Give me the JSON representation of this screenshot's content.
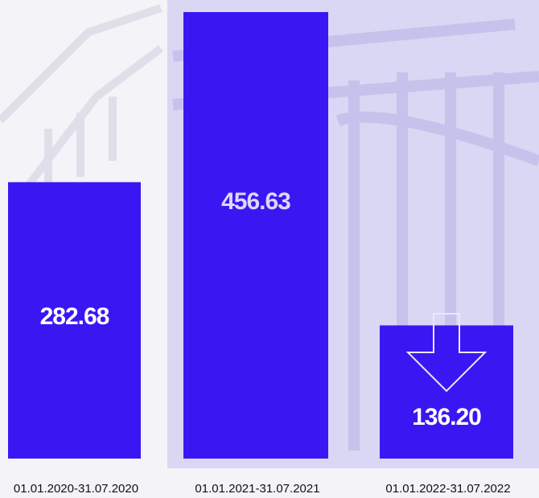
{
  "chart_data": {
    "type": "bar",
    "categories": [
      "01.01.2020-31.07.2020",
      "01.01.2021-31.07.2021",
      "01.01.2022-31.07.2022"
    ],
    "values": [
      282.68,
      456.63,
      136.2
    ],
    "value_labels": [
      "282.68",
      "456.63",
      "136.20"
    ],
    "color": "#3a17f2"
  }
}
